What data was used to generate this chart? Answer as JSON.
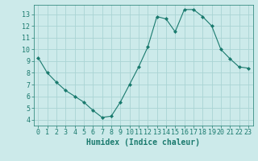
{
  "x": [
    0,
    1,
    2,
    3,
    4,
    5,
    6,
    7,
    8,
    9,
    10,
    11,
    12,
    13,
    14,
    15,
    16,
    17,
    18,
    19,
    20,
    21,
    22,
    23
  ],
  "y": [
    9.3,
    8.0,
    7.2,
    6.5,
    6.0,
    5.5,
    4.8,
    4.2,
    4.3,
    5.5,
    7.0,
    8.5,
    10.2,
    12.8,
    12.6,
    11.5,
    13.4,
    13.4,
    12.8,
    12.0,
    10.0,
    9.2,
    8.5,
    8.4
  ],
  "line_color": "#1a7a6e",
  "marker": "D",
  "marker_size": 2,
  "bg_color": "#cceaea",
  "grid_color": "#aad4d4",
  "xlabel": "Humidex (Indice chaleur)",
  "xlabel_fontsize": 7,
  "tick_fontsize": 6,
  "ylim": [
    3.5,
    13.8
  ],
  "xlim": [
    -0.5,
    23.5
  ],
  "yticks": [
    4,
    5,
    6,
    7,
    8,
    9,
    10,
    11,
    12,
    13
  ],
  "xticks": [
    0,
    1,
    2,
    3,
    4,
    5,
    6,
    7,
    8,
    9,
    10,
    11,
    12,
    13,
    14,
    15,
    16,
    17,
    18,
    19,
    20,
    21,
    22,
    23
  ]
}
